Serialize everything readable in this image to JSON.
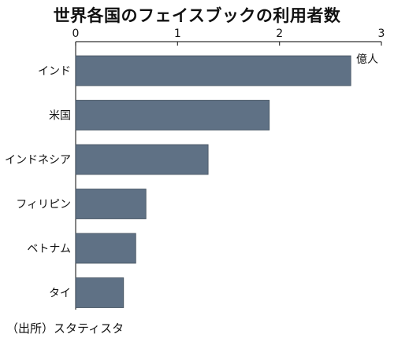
{
  "title": "世界各国のフェイスブックの利用者数",
  "source": "（出所）スタティスタ",
  "chart_data": {
    "type": "bar",
    "orientation": "horizontal",
    "title": "世界各国のフェイスブックの利用者数",
    "unit": "億人",
    "categories": [
      "インド",
      "米国",
      "インドネシア",
      "フィリピン",
      "ベトナム",
      "タイ"
    ],
    "values": [
      2.7,
      1.9,
      1.3,
      0.69,
      0.59,
      0.47
    ],
    "xlim": [
      0,
      3
    ],
    "x_ticks": [
      "0",
      "1",
      "2",
      "3"
    ],
    "bar_color": "#5f7185",
    "grid": false
  }
}
